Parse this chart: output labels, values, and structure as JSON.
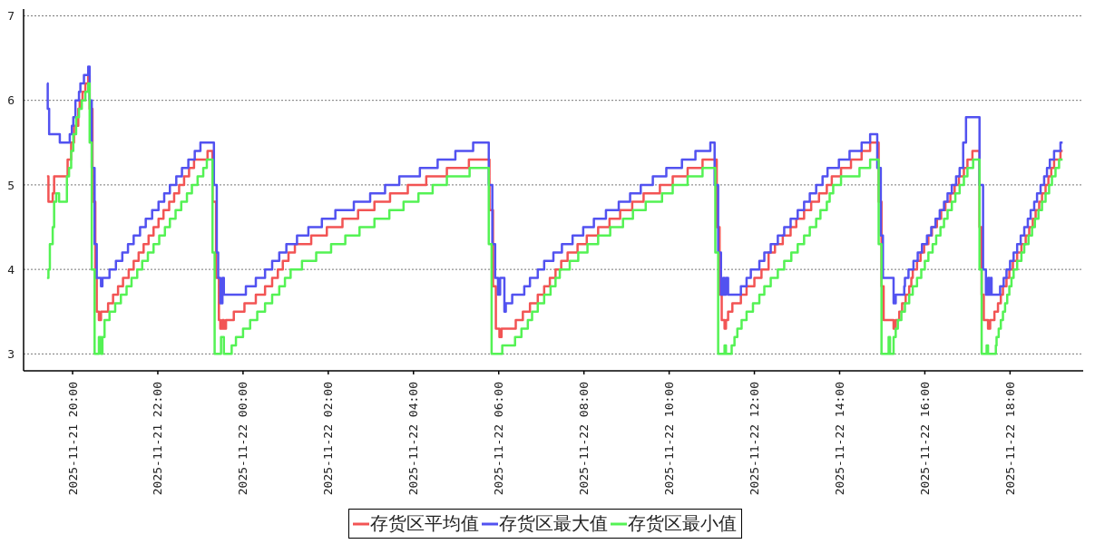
{
  "chart_data": {
    "type": "step",
    "xlim": [
      "2025-11-21T18:51",
      "2025-11-22T19:43"
    ],
    "ylim": [
      2.8,
      7.08
    ],
    "yticks": [
      3,
      4,
      5,
      6,
      7
    ],
    "xticks": [
      {
        "value": "2025-11-21T20:00",
        "label": "2025-11-21 20:00"
      },
      {
        "value": "2025-11-21T22:00",
        "label": "2025-11-21 22:00"
      },
      {
        "value": "2025-11-22T00:00",
        "label": "2025-11-22 00:00"
      },
      {
        "value": "2025-11-22T02:00",
        "label": "2025-11-22 02:00"
      },
      {
        "value": "2025-11-22T04:00",
        "label": "2025-11-22 04:00"
      },
      {
        "value": "2025-11-22T06:00",
        "label": "2025-11-22 06:00"
      },
      {
        "value": "2025-11-22T08:00",
        "label": "2025-11-22 08:00"
      },
      {
        "value": "2025-11-22T10:00",
        "label": "2025-11-22 10:00"
      },
      {
        "value": "2025-11-22T12:00",
        "label": "2025-11-22 12:00"
      },
      {
        "value": "2025-11-22T14:00",
        "label": "2025-11-22 14:00"
      },
      {
        "value": "2025-11-22T16:00",
        "label": "2025-11-22 16:00"
      },
      {
        "value": "2025-11-22T18:00",
        "label": "2025-11-22 18:00"
      }
    ],
    "grid": "y",
    "legend": "bottom",
    "line_style": "solid",
    "series": [
      {
        "name": "存货区平均值",
        "color": "#f25454",
        "x": [
          "2025-11-21T19:24",
          "2025-11-21T19:26",
          "2025-11-21T19:32",
          "2025-11-21T19:34",
          "2025-11-21T19:53",
          "2025-11-21T19:58",
          "2025-11-21T20:02",
          "2025-11-21T20:08",
          "2025-11-21T20:10",
          "2025-11-21T20:14",
          "2025-11-21T20:18",
          "2025-11-21T20:22",
          "2025-11-21T20:24",
          "2025-11-21T20:28",
          "2025-11-21T20:32",
          "2025-11-21T20:34",
          "2025-11-21T20:37",
          "2025-11-21T20:40",
          "2025-11-21T20:50",
          "2025-11-21T20:57",
          "2025-11-21T21:04",
          "2025-11-21T21:11",
          "2025-11-21T21:19",
          "2025-11-21T21:26",
          "2025-11-21T21:33",
          "2025-11-21T21:40",
          "2025-11-21T21:47",
          "2025-11-21T21:54",
          "2025-11-21T22:01",
          "2025-11-21T22:08",
          "2025-11-21T22:16",
          "2025-11-21T22:23",
          "2025-11-21T22:30",
          "2025-11-21T22:37",
          "2025-11-21T22:44",
          "2025-11-21T22:51",
          "2025-11-21T23:10",
          "2025-11-21T23:17",
          "2025-11-21T23:22",
          "2025-11-21T23:26",
          "2025-11-21T23:28",
          "2025-11-21T23:31",
          "2025-11-21T23:33",
          "2025-11-21T23:36",
          "2025-11-21T23:47",
          "2025-11-22T00:02",
          "2025-11-22T00:18",
          "2025-11-22T00:31",
          "2025-11-22T00:41",
          "2025-11-22T00:49",
          "2025-11-22T00:56",
          "2025-11-22T01:04",
          "2025-11-22T01:13",
          "2025-11-22T01:36",
          "2025-11-22T01:58",
          "2025-11-22T02:20",
          "2025-11-22T02:42",
          "2025-11-22T03:05",
          "2025-11-22T03:27",
          "2025-11-22T03:52",
          "2025-11-22T04:18",
          "2025-11-22T04:47",
          "2025-11-22T05:18",
          "2025-11-22T05:47",
          "2025-11-22T05:52",
          "2025-11-22T05:56",
          "2025-11-22T06:01",
          "2025-11-22T06:04",
          "2025-11-22T06:24",
          "2025-11-22T06:34",
          "2025-11-22T06:44",
          "2025-11-22T06:55",
          "2025-11-22T07:04",
          "2025-11-22T07:12",
          "2025-11-22T07:20",
          "2025-11-22T07:28",
          "2025-11-22T07:37",
          "2025-11-22T07:51",
          "2025-11-22T08:04",
          "2025-11-22T08:20",
          "2025-11-22T08:36",
          "2025-11-22T08:51",
          "2025-11-22T09:08",
          "2025-11-22T09:24",
          "2025-11-22T09:47",
          "2025-11-22T10:05",
          "2025-11-22T10:26",
          "2025-11-22T10:47",
          "2025-11-22T11:07",
          "2025-11-22T11:11",
          "2025-11-22T11:14",
          "2025-11-22T11:18",
          "2025-11-22T11:20",
          "2025-11-22T11:23",
          "2025-11-22T11:29",
          "2025-11-22T11:41",
          "2025-11-22T11:49",
          "2025-11-22T12:00",
          "2025-11-22T12:10",
          "2025-11-22T12:20",
          "2025-11-22T12:29",
          "2025-11-22T12:40",
          "2025-11-22T12:51",
          "2025-11-22T12:59",
          "2025-11-22T13:10",
          "2025-11-22T13:20",
          "2025-11-22T13:31",
          "2025-11-22T13:42",
          "2025-11-22T13:49",
          "2025-11-22T14:02",
          "2025-11-22T14:16",
          "2025-11-22T14:31",
          "2025-11-22T14:43",
          "2025-11-22T14:55",
          "2025-11-22T14:59",
          "2025-11-22T15:02",
          "2025-11-22T15:16",
          "2025-11-22T15:19",
          "2025-11-22T15:24",
          "2025-11-22T15:28",
          "2025-11-22T15:33",
          "2025-11-22T15:38",
          "2025-11-22T15:41",
          "2025-11-22T15:43",
          "2025-11-22T15:49",
          "2025-11-22T15:54",
          "2025-11-22T15:59",
          "2025-11-22T16:05",
          "2025-11-22T16:10",
          "2025-11-22T16:17",
          "2025-11-22T16:23",
          "2025-11-22T16:29",
          "2025-11-22T16:36",
          "2025-11-22T16:42",
          "2025-11-22T16:48",
          "2025-11-22T16:55",
          "2025-11-22T17:00",
          "2025-11-22T17:07",
          "2025-11-22T17:17",
          "2025-11-22T17:20",
          "2025-11-22T17:23",
          "2025-11-22T17:29",
          "2025-11-22T17:32",
          "2025-11-22T17:38",
          "2025-11-22T17:43",
          "2025-11-22T17:47",
          "2025-11-22T17:50",
          "2025-11-22T17:55",
          "2025-11-22T17:59",
          "2025-11-22T18:04",
          "2025-11-22T18:10",
          "2025-11-22T18:16",
          "2025-11-22T18:22",
          "2025-11-22T18:27",
          "2025-11-22T18:32",
          "2025-11-22T18:36",
          "2025-11-22T18:41",
          "2025-11-22T18:45",
          "2025-11-22T18:50",
          "2025-11-22T18:54",
          "2025-11-22T18:58",
          "2025-11-22T19:02",
          "2025-11-22T19:11",
          "2025-11-22T19:14"
        ],
        "values": [
          5.1,
          4.8,
          4.9,
          5.1,
          5.3,
          5.5,
          5.7,
          5.9,
          6.0,
          6.1,
          6.2,
          6.3,
          5.9,
          4.8,
          3.9,
          3.5,
          3.4,
          3.5,
          3.6,
          3.7,
          3.8,
          3.9,
          4.0,
          4.1,
          4.2,
          4.3,
          4.4,
          4.5,
          4.6,
          4.7,
          4.8,
          4.9,
          5.0,
          5.1,
          5.2,
          5.3,
          5.4,
          4.8,
          3.9,
          3.4,
          3.3,
          3.4,
          3.3,
          3.4,
          3.5,
          3.6,
          3.7,
          3.8,
          3.9,
          4.0,
          4.1,
          4.2,
          4.3,
          4.4,
          4.5,
          4.6,
          4.7,
          4.8,
          4.9,
          5.0,
          5.1,
          5.2,
          5.3,
          4.7,
          3.8,
          3.3,
          3.2,
          3.3,
          3.4,
          3.5,
          3.6,
          3.7,
          3.8,
          3.9,
          4.0,
          4.1,
          4.2,
          4.3,
          4.4,
          4.5,
          4.6,
          4.7,
          4.8,
          4.9,
          5.0,
          5.1,
          5.2,
          5.3,
          4.5,
          3.7,
          3.4,
          3.3,
          3.4,
          3.5,
          3.6,
          3.7,
          3.8,
          3.9,
          4.0,
          4.2,
          4.3,
          4.4,
          4.5,
          4.6,
          4.7,
          4.8,
          4.9,
          5.0,
          5.1,
          5.2,
          5.3,
          5.4,
          5.5,
          4.8,
          3.8,
          3.4,
          3.3,
          3.4,
          3.5,
          3.6,
          3.7,
          3.8,
          3.9,
          4.0,
          4.1,
          4.2,
          4.3,
          4.4,
          4.5,
          4.6,
          4.7,
          4.8,
          4.9,
          5.0,
          5.1,
          5.2,
          5.3,
          5.4,
          4.5,
          3.7,
          3.4,
          3.3,
          3.4,
          3.5,
          3.6,
          3.7,
          3.8,
          3.9,
          4.0,
          4.1,
          4.2,
          4.3,
          4.4,
          4.5,
          4.6,
          4.7,
          4.8,
          4.9,
          5.0,
          5.1,
          5.2,
          5.3,
          5.4,
          5.4
        ]
      },
      {
        "name": "存货区最大值",
        "color": "#5252f0",
        "x": [
          "2025-11-21T19:24",
          "2025-11-21T19:25",
          "2025-11-21T19:27",
          "2025-11-21T19:42",
          "2025-11-21T19:56",
          "2025-11-21T19:59",
          "2025-11-21T20:01",
          "2025-11-21T20:04",
          "2025-11-21T20:09",
          "2025-11-21T20:11",
          "2025-11-21T20:16",
          "2025-11-21T20:22",
          "2025-11-21T20:24",
          "2025-11-21T20:27",
          "2025-11-21T20:31",
          "2025-11-21T20:34",
          "2025-11-21T20:40",
          "2025-11-21T20:42",
          "2025-11-21T20:52",
          "2025-11-21T21:01",
          "2025-11-21T21:10",
          "2025-11-21T21:18",
          "2025-11-21T21:26",
          "2025-11-21T21:35",
          "2025-11-21T21:43",
          "2025-11-21T21:52",
          "2025-11-21T22:01",
          "2025-11-21T22:09",
          "2025-11-21T22:17",
          "2025-11-21T22:26",
          "2025-11-21T22:34",
          "2025-11-21T22:43",
          "2025-11-21T22:52",
          "2025-11-21T23:00",
          "2025-11-21T23:19",
          "2025-11-21T23:23",
          "2025-11-21T23:25",
          "2025-11-21T23:28",
          "2025-11-21T23:31",
          "2025-11-21T23:33",
          "2025-11-22T00:04",
          "2025-11-22T00:18",
          "2025-11-22T00:31",
          "2025-11-22T00:41",
          "2025-11-22T00:51",
          "2025-11-22T01:01",
          "2025-11-22T01:16",
          "2025-11-22T01:32",
          "2025-11-22T01:51",
          "2025-11-22T02:10",
          "2025-11-22T02:36",
          "2025-11-22T02:59",
          "2025-11-22T03:20",
          "2025-11-22T03:40",
          "2025-11-22T04:09",
          "2025-11-22T04:34",
          "2025-11-22T04:59",
          "2025-11-22T05:24",
          "2025-11-22T05:46",
          "2025-11-22T05:51",
          "2025-11-22T05:55",
          "2025-11-22T05:59",
          "2025-11-22T06:02",
          "2025-11-22T06:08",
          "2025-11-22T06:10",
          "2025-11-22T06:19",
          "2025-11-22T06:36",
          "2025-11-22T06:44",
          "2025-11-22T06:55",
          "2025-11-22T07:04",
          "2025-11-22T07:17",
          "2025-11-22T07:29",
          "2025-11-22T07:44",
          "2025-11-22T07:59",
          "2025-11-22T08:14",
          "2025-11-22T08:31",
          "2025-11-22T08:49",
          "2025-11-22T09:05",
          "2025-11-22T09:20",
          "2025-11-22T09:37",
          "2025-11-22T09:56",
          "2025-11-22T10:18",
          "2025-11-22T10:37",
          "2025-11-22T10:58",
          "2025-11-22T11:04",
          "2025-11-22T11:09",
          "2025-11-22T11:13",
          "2025-11-22T11:16",
          "2025-11-22T11:18",
          "2025-11-22T11:20",
          "2025-11-22T11:23",
          "2025-11-22T11:41",
          "2025-11-22T11:49",
          "2025-11-22T11:55",
          "2025-11-22T12:07",
          "2025-11-22T12:14",
          "2025-11-22T12:23",
          "2025-11-22T12:33",
          "2025-11-22T12:42",
          "2025-11-22T12:51",
          "2025-11-22T13:01",
          "2025-11-22T13:10",
          "2025-11-22T13:18",
          "2025-11-22T13:27",
          "2025-11-22T13:36",
          "2025-11-22T13:43",
          "2025-11-22T13:59",
          "2025-11-22T14:14",
          "2025-11-22T14:31",
          "2025-11-22T14:43",
          "2025-11-22T14:53",
          "2025-11-22T14:58",
          "2025-11-22T15:01",
          "2025-11-22T15:16",
          "2025-11-22T15:19",
          "2025-11-22T15:31",
          "2025-11-22T15:32",
          "2025-11-22T15:37",
          "2025-11-22T15:44",
          "2025-11-22T15:50",
          "2025-11-22T15:56",
          "2025-11-22T16:03",
          "2025-11-22T16:09",
          "2025-11-22T16:15",
          "2025-11-22T16:21",
          "2025-11-22T16:27",
          "2025-11-22T16:32",
          "2025-11-22T16:38",
          "2025-11-22T16:44",
          "2025-11-22T16:49",
          "2025-11-22T16:54",
          "2025-11-22T16:58",
          "2025-11-22T17:17",
          "2025-11-22T17:22",
          "2025-11-22T17:26",
          "2025-11-22T17:29",
          "2025-11-22T17:31",
          "2025-11-22T17:33",
          "2025-11-22T17:34",
          "2025-11-22T17:46",
          "2025-11-22T17:51",
          "2025-11-22T17:55",
          "2025-11-22T18:00",
          "2025-11-22T18:05",
          "2025-11-22T18:10",
          "2025-11-22T18:15",
          "2025-11-22T18:20",
          "2025-11-22T18:25",
          "2025-11-22T18:29",
          "2025-11-22T18:34",
          "2025-11-22T18:38",
          "2025-11-22T18:43",
          "2025-11-22T18:48",
          "2025-11-22T18:52",
          "2025-11-22T18:56",
          "2025-11-22T19:02",
          "2025-11-22T19:11",
          "2025-11-22T19:14"
        ],
        "values": [
          6.2,
          5.9,
          5.6,
          5.5,
          5.6,
          5.7,
          5.8,
          6.0,
          6.1,
          6.2,
          6.3,
          6.4,
          6.0,
          5.2,
          4.3,
          3.9,
          3.8,
          3.9,
          4.0,
          4.1,
          4.2,
          4.3,
          4.4,
          4.5,
          4.6,
          4.7,
          4.8,
          4.9,
          5.0,
          5.1,
          5.2,
          5.3,
          5.4,
          5.5,
          5.0,
          4.2,
          3.9,
          3.6,
          3.9,
          3.7,
          3.8,
          3.9,
          4.0,
          4.1,
          4.2,
          4.3,
          4.4,
          4.5,
          4.6,
          4.7,
          4.8,
          4.9,
          5.0,
          5.1,
          5.2,
          5.3,
          5.4,
          5.5,
          5.0,
          4.3,
          3.9,
          3.7,
          3.9,
          3.5,
          3.6,
          3.7,
          3.8,
          3.9,
          4.0,
          4.1,
          4.2,
          4.3,
          4.4,
          4.5,
          4.6,
          4.7,
          4.8,
          4.9,
          5.0,
          5.1,
          5.2,
          5.3,
          5.4,
          5.5,
          5.0,
          4.2,
          3.7,
          3.9,
          3.7,
          3.9,
          3.7,
          3.8,
          3.9,
          4.0,
          4.1,
          4.2,
          4.3,
          4.4,
          4.5,
          4.6,
          4.7,
          4.8,
          4.9,
          5.0,
          5.1,
          5.2,
          5.3,
          5.4,
          5.5,
          5.6,
          5.2,
          4.4,
          3.9,
          3.6,
          3.7,
          3.8,
          3.9,
          4.0,
          4.1,
          4.2,
          4.3,
          4.4,
          4.5,
          4.6,
          4.7,
          4.8,
          4.9,
          5.0,
          5.1,
          5.2,
          5.5,
          5.8,
          5.0,
          4.0,
          3.7,
          3.9,
          3.7,
          3.9,
          3.7,
          3.8,
          3.9,
          4.0,
          4.1,
          4.2,
          4.3,
          4.4,
          4.5,
          4.6,
          4.7,
          4.8,
          4.9,
          5.0,
          5.1,
          5.2,
          5.3,
          5.4,
          5.5,
          5.5
        ]
      },
      {
        "name": "存货区最小值",
        "color": "#54f254",
        "x": [
          "2025-11-21T19:24",
          "2025-11-21T19:26",
          "2025-11-21T19:28",
          "2025-11-21T19:32",
          "2025-11-21T19:34",
          "2025-11-21T19:37",
          "2025-11-21T19:41",
          "2025-11-21T19:52",
          "2025-11-21T19:55",
          "2025-11-21T19:58",
          "2025-11-21T20:01",
          "2025-11-21T20:05",
          "2025-11-21T20:09",
          "2025-11-21T20:13",
          "2025-11-21T20:18",
          "2025-11-21T20:22",
          "2025-11-21T20:24",
          "2025-11-21T20:27",
          "2025-11-21T20:31",
          "2025-11-21T20:37",
          "2025-11-21T20:40",
          "2025-11-21T20:42",
          "2025-11-21T20:45",
          "2025-11-21T20:52",
          "2025-11-21T21:00",
          "2025-11-21T21:08",
          "2025-11-21T21:16",
          "2025-11-21T21:23",
          "2025-11-21T21:31",
          "2025-11-21T21:38",
          "2025-11-21T21:46",
          "2025-11-21T21:54",
          "2025-11-21T22:02",
          "2025-11-21T22:10",
          "2025-11-21T22:17",
          "2025-11-21T22:25",
          "2025-11-21T22:33",
          "2025-11-21T22:41",
          "2025-11-21T22:48",
          "2025-11-21T22:56",
          "2025-11-21T23:04",
          "2025-11-21T23:09",
          "2025-11-21T23:17",
          "2025-11-21T23:20",
          "2025-11-21T23:29",
          "2025-11-21T23:33",
          "2025-11-21T23:44",
          "2025-11-21T23:50",
          "2025-11-22T00:00",
          "2025-11-22T00:10",
          "2025-11-22T00:20",
          "2025-11-22T00:31",
          "2025-11-22T00:41",
          "2025-11-22T00:51",
          "2025-11-22T00:59",
          "2025-11-22T01:07",
          "2025-11-22T01:23",
          "2025-11-22T01:43",
          "2025-11-22T02:04",
          "2025-11-22T02:24",
          "2025-11-22T02:44",
          "2025-11-22T03:05",
          "2025-11-22T03:26",
          "2025-11-22T03:46",
          "2025-11-22T04:07",
          "2025-11-22T04:27",
          "2025-11-22T04:47",
          "2025-11-22T05:19",
          "2025-11-22T05:46",
          "2025-11-22T05:50",
          "2025-11-22T06:05",
          "2025-11-22T06:23",
          "2025-11-22T06:32",
          "2025-11-22T06:41",
          "2025-11-22T06:47",
          "2025-11-22T06:55",
          "2025-11-22T07:04",
          "2025-11-22T07:13",
          "2025-11-22T07:20",
          "2025-11-22T07:26",
          "2025-11-22T07:40",
          "2025-11-22T07:52",
          "2025-11-22T08:05",
          "2025-11-22T08:20",
          "2025-11-22T08:37",
          "2025-11-22T08:55",
          "2025-11-22T09:09",
          "2025-11-22T09:27",
          "2025-11-22T09:50",
          "2025-11-22T10:05",
          "2025-11-22T10:26",
          "2025-11-22T10:47",
          "2025-11-22T11:05",
          "2025-11-22T11:09",
          "2025-11-22T11:18",
          "2025-11-22T11:20",
          "2025-11-22T11:28",
          "2025-11-22T11:32",
          "2025-11-22T11:36",
          "2025-11-22T11:42",
          "2025-11-22T11:49",
          "2025-11-22T11:58",
          "2025-11-22T12:07",
          "2025-11-22T12:14",
          "2025-11-22T12:23",
          "2025-11-22T12:33",
          "2025-11-22T12:42",
          "2025-11-22T12:52",
          "2025-11-22T13:01",
          "2025-11-22T13:10",
          "2025-11-22T13:18",
          "2025-11-22T13:27",
          "2025-11-22T13:33",
          "2025-11-22T13:42",
          "2025-11-22T13:46",
          "2025-11-22T13:51",
          "2025-11-22T14:02",
          "2025-11-22T14:28",
          "2025-11-22T14:43",
          "2025-11-22T14:55",
          "2025-11-22T14:59",
          "2025-11-22T15:09",
          "2025-11-22T15:11",
          "2025-11-22T15:16",
          "2025-11-22T15:19",
          "2025-11-22T15:22",
          "2025-11-22T15:27",
          "2025-11-22T15:32",
          "2025-11-22T15:38",
          "2025-11-22T15:43",
          "2025-11-22T15:49",
          "2025-11-22T15:55",
          "2025-11-22T16:00",
          "2025-11-22T16:05",
          "2025-11-22T16:11",
          "2025-11-22T16:16",
          "2025-11-22T16:22",
          "2025-11-22T16:27",
          "2025-11-22T16:32",
          "2025-11-22T16:38",
          "2025-11-22T16:43",
          "2025-11-22T16:49",
          "2025-11-22T16:55",
          "2025-11-22T17:00",
          "2025-11-22T17:08",
          "2025-11-22T17:17",
          "2025-11-22T17:20",
          "2025-11-22T17:27",
          "2025-11-22T17:29",
          "2025-11-22T17:40",
          "2025-11-22T17:41",
          "2025-11-22T17:44",
          "2025-11-22T17:47",
          "2025-11-22T17:50",
          "2025-11-22T17:53",
          "2025-11-22T17:56",
          "2025-11-22T17:59",
          "2025-11-22T18:02",
          "2025-11-22T18:05",
          "2025-11-22T18:10",
          "2025-11-22T18:16",
          "2025-11-22T18:20",
          "2025-11-22T18:26",
          "2025-11-22T18:31",
          "2025-11-22T18:35",
          "2025-11-22T18:40",
          "2025-11-22T18:45",
          "2025-11-22T18:50",
          "2025-11-22T18:55",
          "2025-11-22T18:59",
          "2025-11-22T19:04",
          "2025-11-22T19:09",
          "2025-11-22T19:14"
        ],
        "values": [
          3.9,
          4.0,
          4.3,
          4.5,
          4.8,
          4.9,
          4.8,
          5.1,
          5.2,
          5.4,
          5.6,
          5.8,
          5.9,
          6.0,
          6.1,
          6.2,
          5.5,
          4.0,
          3.0,
          3.2,
          3.0,
          3.2,
          3.4,
          3.5,
          3.6,
          3.7,
          3.8,
          3.9,
          4.0,
          4.1,
          4.2,
          4.3,
          4.4,
          4.5,
          4.6,
          4.7,
          4.8,
          4.9,
          5.0,
          5.1,
          5.2,
          5.3,
          4.2,
          3.0,
          3.2,
          3.0,
          3.1,
          3.2,
          3.3,
          3.4,
          3.5,
          3.6,
          3.7,
          3.8,
          3.9,
          4.0,
          4.1,
          4.2,
          4.3,
          4.4,
          4.5,
          4.6,
          4.7,
          4.8,
          4.9,
          5.0,
          5.1,
          5.2,
          4.3,
          3.0,
          3.1,
          3.2,
          3.3,
          3.4,
          3.5,
          3.6,
          3.7,
          3.8,
          3.9,
          4.0,
          4.1,
          4.2,
          4.3,
          4.4,
          4.5,
          4.6,
          4.7,
          4.8,
          4.9,
          5.0,
          5.1,
          5.2,
          4.2,
          3.0,
          3.1,
          3.0,
          3.1,
          3.2,
          3.3,
          3.4,
          3.5,
          3.6,
          3.7,
          3.8,
          3.9,
          4.0,
          4.1,
          4.2,
          4.3,
          4.4,
          4.5,
          4.6,
          4.7,
          4.8,
          4.9,
          5.0,
          5.1,
          5.2,
          5.3,
          4.3,
          3.0,
          3.2,
          3.0,
          3.2,
          3.3,
          3.4,
          3.5,
          3.6,
          3.7,
          3.8,
          3.9,
          4.0,
          4.1,
          4.2,
          4.3,
          4.4,
          4.5,
          4.6,
          4.7,
          4.8,
          4.9,
          5.0,
          5.1,
          5.2,
          5.3,
          4.0,
          3.0,
          3.1,
          3.0,
          3.1,
          3.2,
          3.3,
          3.4,
          3.5,
          3.6,
          3.7,
          3.8,
          3.9,
          4.0,
          4.1,
          4.2,
          4.3,
          4.4,
          4.5,
          4.6,
          4.7,
          4.8,
          4.9,
          5.0,
          5.1,
          5.2,
          5.3,
          5.3
        ]
      }
    ]
  }
}
